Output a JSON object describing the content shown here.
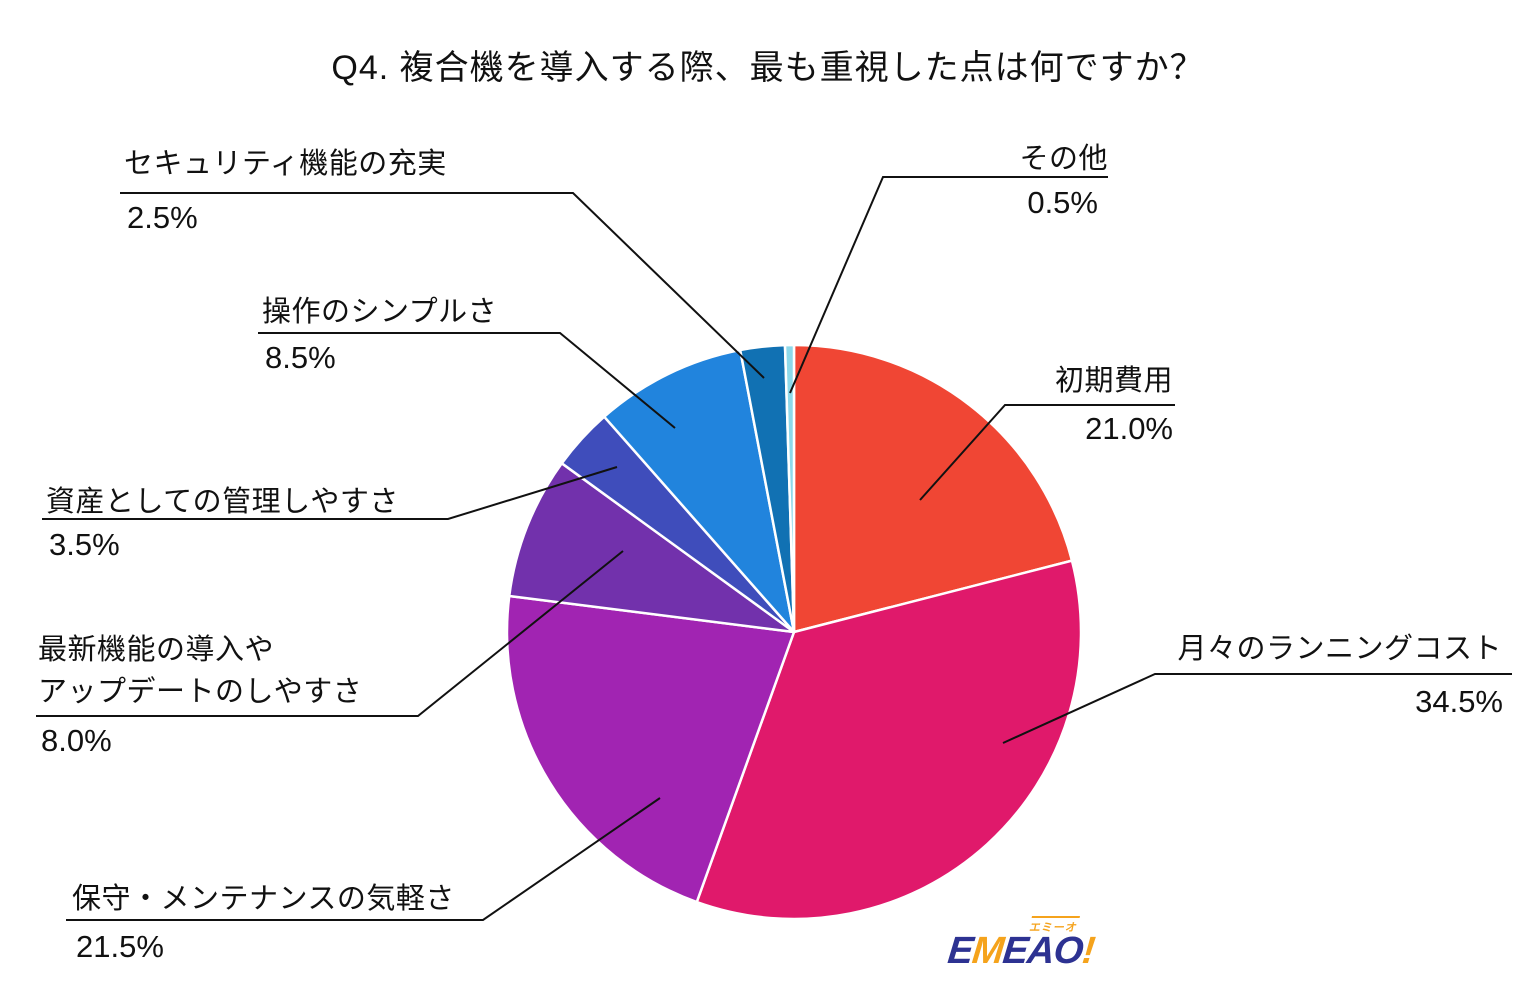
{
  "title": "Q4. 複合機を導入する際、最も重視した点は何ですか？",
  "chart_data": {
    "type": "pie",
    "title": "Q4. 複合機を導入する際、最も重視した点は何ですか？",
    "unit": "%",
    "start_angle": "top",
    "direction": "clockwise",
    "legend_position": "none",
    "slices": [
      {
        "label": "初期費用",
        "value": 21.0,
        "pct_label": "21.0%",
        "color": "#F04634"
      },
      {
        "label": "月々のランニングコスト",
        "value": 34.5,
        "pct_label": "34.5%",
        "color": "#E0196B"
      },
      {
        "label": "保守・メンテナンスの気軽さ",
        "value": 21.5,
        "pct_label": "21.5%",
        "color": "#A124B2"
      },
      {
        "label": "最新機能の導入やアップデートのしやすさ",
        "value": 8.0,
        "pct_label": "8.0%",
        "color": "#7231AC",
        "label_lines": [
          "最新機能の導入や",
          "アップデートのしやすさ"
        ]
      },
      {
        "label": "資産としての管理しやすさ",
        "value": 3.5,
        "pct_label": "3.5%",
        "color": "#3F4DBB"
      },
      {
        "label": "操作のシンプルさ",
        "value": 8.5,
        "pct_label": "8.5%",
        "color": "#2184DD"
      },
      {
        "label": "セキュリティ機能の充実",
        "value": 2.5,
        "pct_label": "2.5%",
        "color": "#1171B3"
      },
      {
        "label": "その他",
        "value": 0.5,
        "pct_label": "0.5%",
        "color": "#8ED9EA"
      }
    ]
  },
  "logo": {
    "e1": "E",
    "m": "M",
    "eao": "EAO",
    "bang": "!",
    "ruby": "エミーオ"
  }
}
